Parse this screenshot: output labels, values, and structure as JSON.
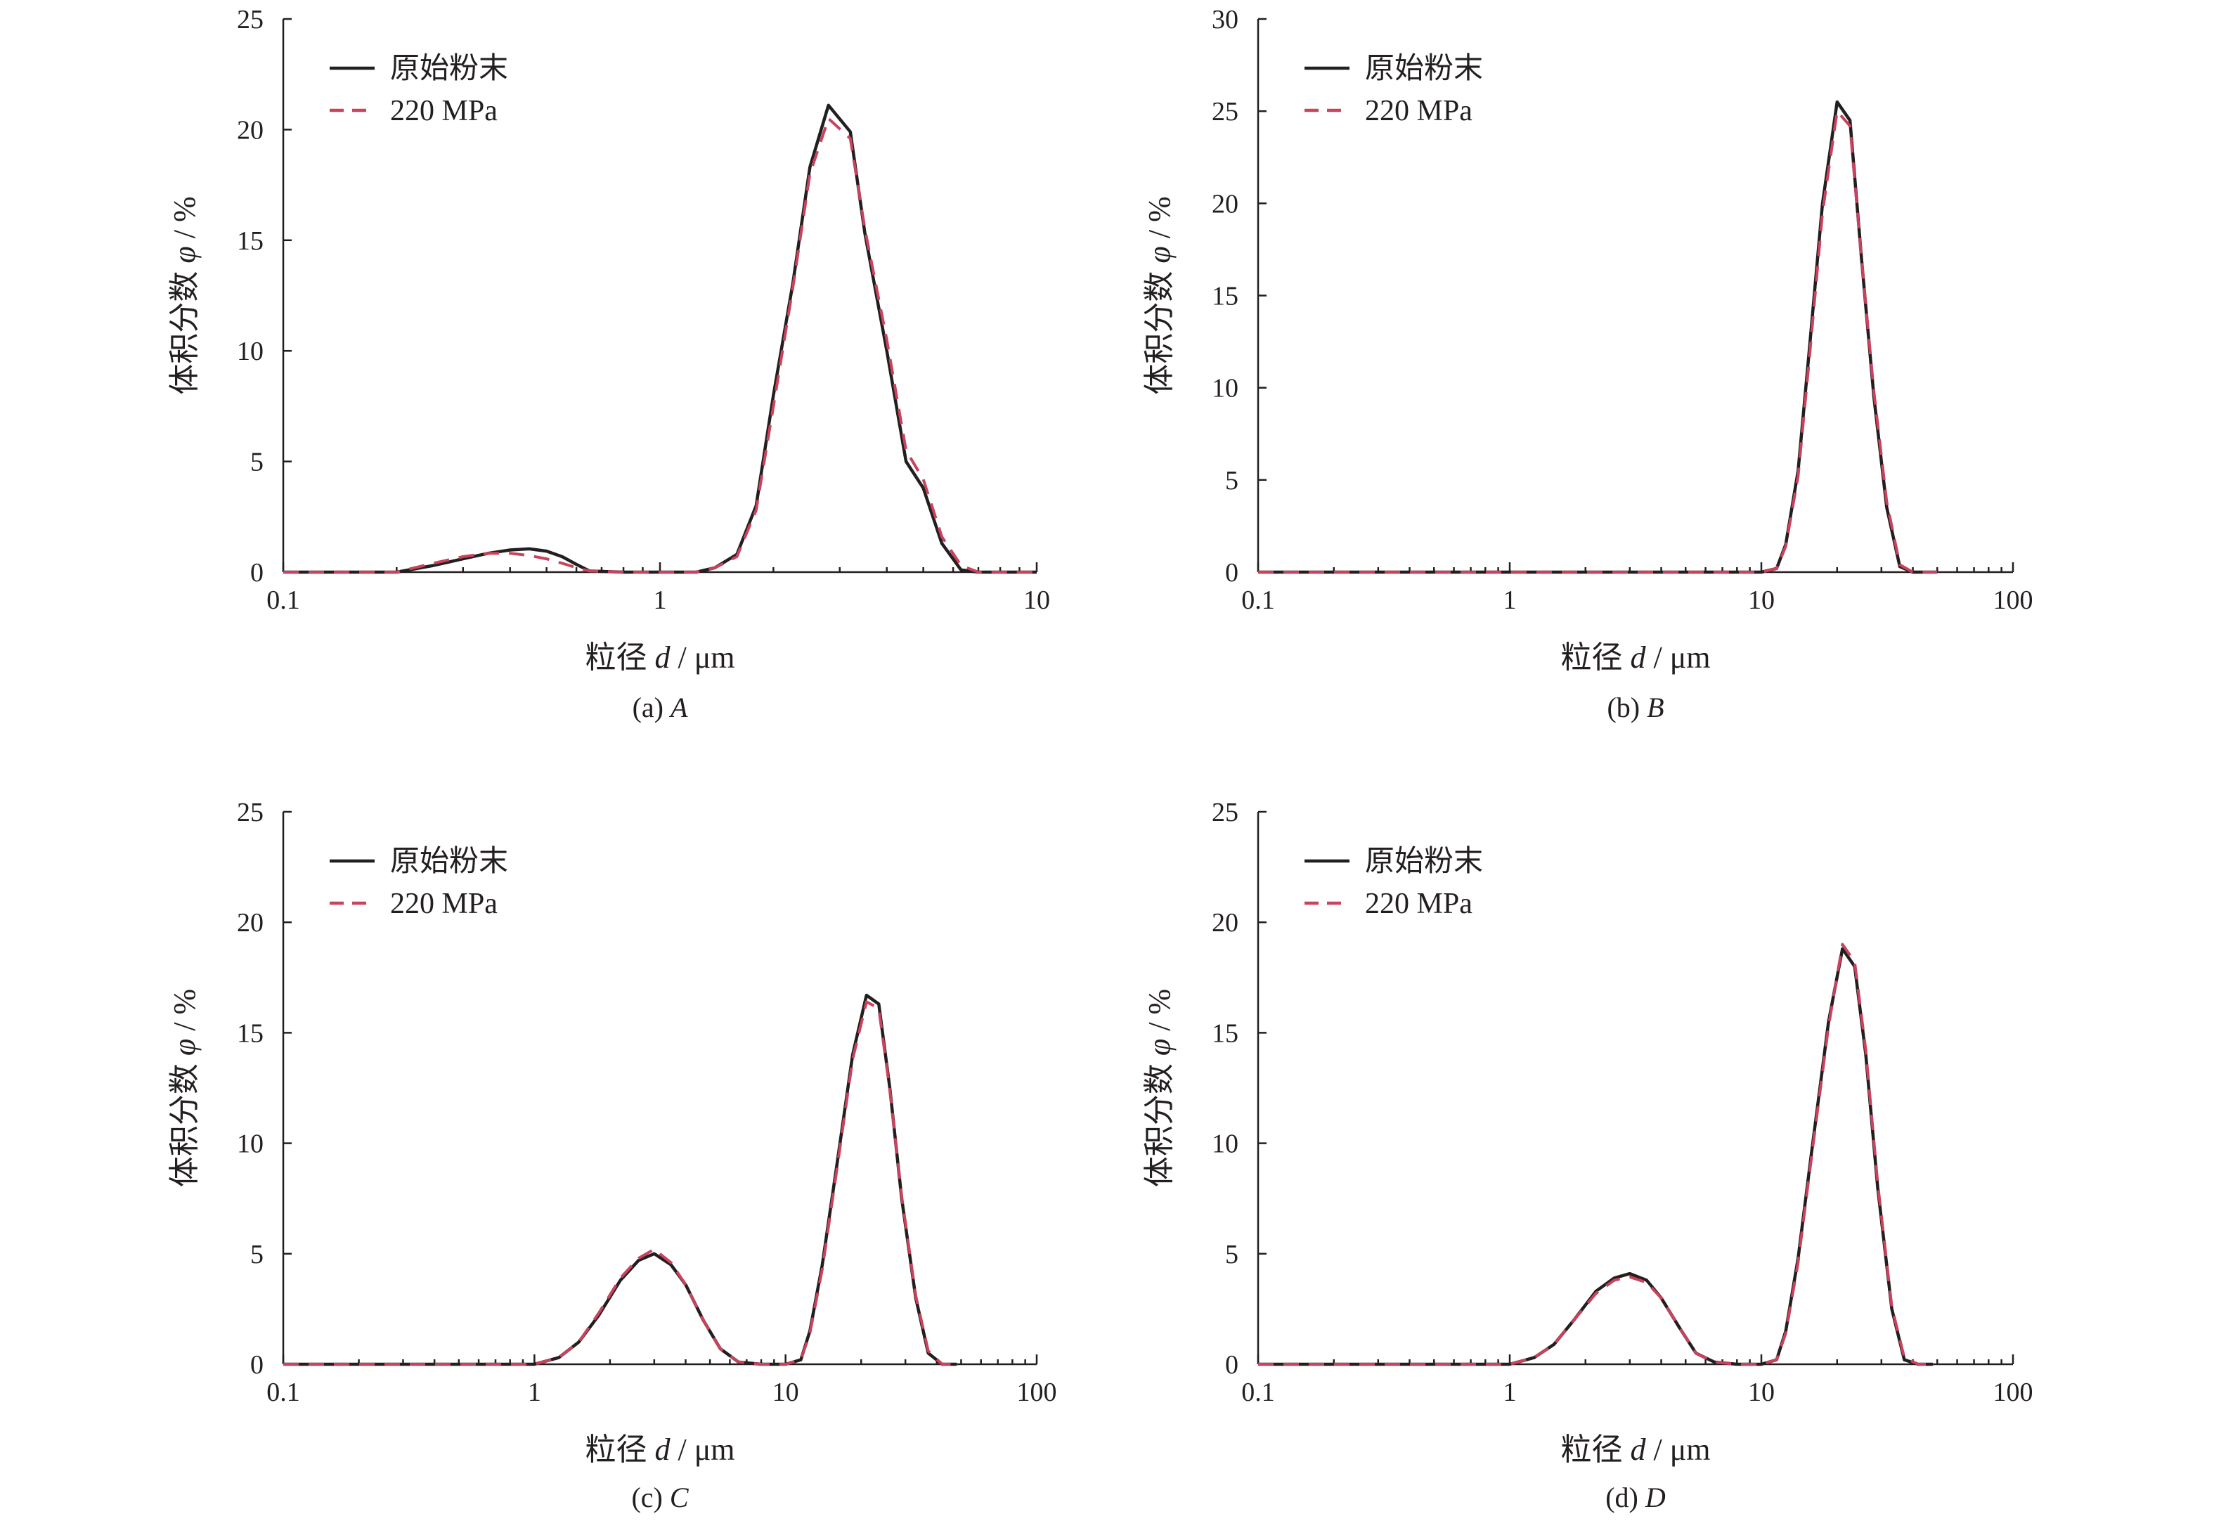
{
  "chart_data": [
    {
      "type": "line",
      "caption_prefix": "(a) ",
      "caption_letter": "A",
      "xlabel_prefix": "粒径 ",
      "xlabel_var": "d",
      "xlabel_unit": " / μm",
      "ylabel_prefix": "体积分数 ",
      "ylabel_var": "φ",
      "ylabel_unit": " / %",
      "xscale": "log",
      "xlim": [
        0.1,
        10
      ],
      "ylim": [
        0,
        25
      ],
      "xticks": [
        {
          "value": 0.1,
          "label": "0.1"
        },
        {
          "value": 1,
          "label": "1"
        },
        {
          "value": 10,
          "label": "10"
        }
      ],
      "yticks": [
        {
          "value": 0,
          "label": "0"
        },
        {
          "value": 5,
          "label": "5"
        },
        {
          "value": 10,
          "label": "10"
        },
        {
          "value": 15,
          "label": "15"
        },
        {
          "value": 20,
          "label": "20"
        },
        {
          "value": 25,
          "label": "25"
        }
      ],
      "legend_position": "top-left",
      "series": [
        {
          "name": "原始粉末",
          "color": "#231f20",
          "dash": "solid",
          "x": [
            0.1,
            0.2,
            0.25,
            0.3,
            0.35,
            0.4,
            0.45,
            0.5,
            0.55,
            0.6,
            0.65,
            0.8,
            1.0,
            1.25,
            1.4,
            1.6,
            1.8,
            2.0,
            2.25,
            2.5,
            2.8,
            3.2,
            3.5,
            4.0,
            4.5,
            5.0,
            5.6,
            6.3,
            7.0,
            8.0,
            10.0
          ],
          "y": [
            0,
            0,
            0.3,
            0.6,
            0.85,
            1.0,
            1.05,
            0.95,
            0.7,
            0.35,
            0.05,
            0,
            0,
            0,
            0.2,
            0.8,
            3.0,
            8.0,
            13.0,
            18.3,
            21.1,
            19.9,
            15.3,
            10.0,
            5.0,
            3.8,
            1.3,
            0.1,
            0,
            0,
            0
          ]
        },
        {
          "name": "220 MPa",
          "color": "#c9425e",
          "dash": "dashed",
          "x": [
            0.1,
            0.2,
            0.25,
            0.3,
            0.35,
            0.4,
            0.45,
            0.5,
            0.55,
            0.6,
            0.65,
            0.8,
            1.0,
            1.25,
            1.4,
            1.6,
            1.8,
            2.0,
            2.25,
            2.5,
            2.8,
            3.2,
            3.5,
            4.0,
            4.5,
            5.0,
            5.6,
            6.3,
            7.0,
            8.0,
            10.0
          ],
          "y": [
            0,
            0,
            0.4,
            0.7,
            0.85,
            0.85,
            0.75,
            0.6,
            0.4,
            0.2,
            0.05,
            0,
            0,
            0,
            0.2,
            0.7,
            2.8,
            7.5,
            12.8,
            18.0,
            20.5,
            19.6,
            15.5,
            10.5,
            5.5,
            4.2,
            1.6,
            0.3,
            0,
            0,
            0
          ]
        }
      ]
    },
    {
      "type": "line",
      "caption_prefix": "(b) ",
      "caption_letter": "B",
      "xlabel_prefix": "粒径 ",
      "xlabel_var": "d",
      "xlabel_unit": " / μm",
      "ylabel_prefix": "体积分数 ",
      "ylabel_var": "φ",
      "ylabel_unit": " / %",
      "xscale": "log",
      "xlim": [
        0.1,
        100
      ],
      "ylim": [
        0,
        30
      ],
      "xticks": [
        {
          "value": 0.1,
          "label": "0.1"
        },
        {
          "value": 1,
          "label": "1"
        },
        {
          "value": 10,
          "label": "10"
        },
        {
          "value": 100,
          "label": "100"
        }
      ],
      "yticks": [
        {
          "value": 0,
          "label": "0"
        },
        {
          "value": 5,
          "label": "5"
        },
        {
          "value": 10,
          "label": "10"
        },
        {
          "value": 15,
          "label": "15"
        },
        {
          "value": 20,
          "label": "20"
        },
        {
          "value": 25,
          "label": "25"
        },
        {
          "value": 30,
          "label": "30"
        }
      ],
      "legend_position": "top-left",
      "series": [
        {
          "name": "原始粉末",
          "color": "#231f20",
          "dash": "solid",
          "x": [
            0.1,
            10,
            11.5,
            12.5,
            14,
            15.5,
            17.5,
            20,
            22.5,
            25,
            28,
            31.5,
            35.5,
            40,
            45,
            50
          ],
          "y": [
            0,
            0,
            0.2,
            1.5,
            5.5,
            12.0,
            20.0,
            25.5,
            24.5,
            17.0,
            9.5,
            3.5,
            0.3,
            0,
            0,
            0
          ]
        },
        {
          "name": "220 MPa",
          "color": "#c9425e",
          "dash": "dashed",
          "x": [
            0.1,
            10,
            11.5,
            12.5,
            14,
            15.5,
            17.5,
            20,
            22.5,
            25,
            28,
            31.5,
            35.5,
            40,
            45,
            50
          ],
          "y": [
            0,
            0,
            0.2,
            1.4,
            5.2,
            11.5,
            19.5,
            25.0,
            24.2,
            17.0,
            9.8,
            3.8,
            0.4,
            0,
            0,
            0
          ]
        }
      ]
    },
    {
      "type": "line",
      "caption_prefix": "(c) ",
      "caption_letter": "C",
      "xlabel_prefix": "粒径 ",
      "xlabel_var": "d",
      "xlabel_unit": " / μm",
      "ylabel_prefix": "体积分数 ",
      "ylabel_var": "φ",
      "ylabel_unit": " / %",
      "xscale": "log",
      "xlim": [
        0.1,
        100
      ],
      "ylim": [
        0,
        25
      ],
      "xticks": [
        {
          "value": 0.1,
          "label": "0.1"
        },
        {
          "value": 1,
          "label": "1"
        },
        {
          "value": 10,
          "label": "10"
        },
        {
          "value": 100,
          "label": "100"
        }
      ],
      "yticks": [
        {
          "value": 0,
          "label": "0"
        },
        {
          "value": 5,
          "label": "5"
        },
        {
          "value": 10,
          "label": "10"
        },
        {
          "value": 15,
          "label": "15"
        },
        {
          "value": 20,
          "label": "20"
        },
        {
          "value": 25,
          "label": "25"
        }
      ],
      "legend_position": "top-left",
      "series": [
        {
          "name": "原始粉末",
          "color": "#231f20",
          "dash": "solid",
          "x": [
            0.1,
            1,
            1.25,
            1.5,
            1.8,
            2.2,
            2.6,
            3.0,
            3.5,
            4.0,
            4.7,
            5.5,
            6.5,
            8,
            10,
            11.5,
            12.5,
            14,
            16,
            18.5,
            21,
            23.5,
            26,
            29,
            33,
            37,
            42,
            48
          ],
          "y": [
            0,
            0,
            0.3,
            1.0,
            2.2,
            3.8,
            4.7,
            5.0,
            4.5,
            3.6,
            2.0,
            0.7,
            0.1,
            0,
            0,
            0.2,
            1.5,
            4.5,
            9.0,
            14.0,
            16.7,
            16.3,
            12.5,
            7.5,
            3.0,
            0.5,
            0,
            0
          ]
        },
        {
          "name": "220 MPa",
          "color": "#c9425e",
          "dash": "dashed",
          "x": [
            0.1,
            1,
            1.25,
            1.5,
            1.8,
            2.2,
            2.6,
            3.0,
            3.5,
            4.0,
            4.7,
            5.5,
            6.5,
            8,
            10,
            11.5,
            12.5,
            14,
            16,
            18.5,
            21,
            23.5,
            26,
            29,
            33,
            37,
            42,
            48
          ],
          "y": [
            0,
            0,
            0.3,
            1.0,
            2.3,
            3.9,
            4.8,
            5.2,
            4.6,
            3.6,
            2.0,
            0.7,
            0.1,
            0,
            0,
            0.2,
            1.4,
            4.3,
            8.8,
            13.8,
            16.4,
            16.1,
            12.4,
            7.6,
            3.1,
            0.6,
            0,
            0
          ]
        }
      ]
    },
    {
      "type": "line",
      "caption_prefix": "(d) ",
      "caption_letter": "D",
      "xlabel_prefix": "粒径 ",
      "xlabel_var": "d",
      "xlabel_unit": " / μm",
      "ylabel_prefix": "体积分数 ",
      "ylabel_var": "φ",
      "ylabel_unit": " / %",
      "xscale": "log",
      "xlim": [
        0.1,
        100
      ],
      "ylim": [
        0,
        25
      ],
      "xticks": [
        {
          "value": 0.1,
          "label": "0.1"
        },
        {
          "value": 1,
          "label": "1"
        },
        {
          "value": 10,
          "label": "10"
        },
        {
          "value": 100,
          "label": "100"
        }
      ],
      "yticks": [
        {
          "value": 0,
          "label": "0"
        },
        {
          "value": 5,
          "label": "5"
        },
        {
          "value": 10,
          "label": "10"
        },
        {
          "value": 15,
          "label": "15"
        },
        {
          "value": 20,
          "label": "20"
        },
        {
          "value": 25,
          "label": "25"
        }
      ],
      "legend_position": "top-left",
      "series": [
        {
          "name": "原始粉末",
          "color": "#231f20",
          "dash": "solid",
          "x": [
            0.1,
            1,
            1.25,
            1.5,
            1.8,
            2.2,
            2.6,
            3.0,
            3.5,
            4.0,
            4.7,
            5.5,
            6.5,
            8,
            10,
            11.5,
            12.5,
            14,
            16,
            18.5,
            21,
            23.5,
            26,
            29,
            33,
            37,
            42,
            48
          ],
          "y": [
            0,
            0,
            0.3,
            0.9,
            2.0,
            3.3,
            3.9,
            4.1,
            3.8,
            3.0,
            1.7,
            0.5,
            0.1,
            0,
            0,
            0.2,
            1.5,
            4.8,
            10.0,
            15.5,
            18.8,
            18.0,
            14.0,
            8.0,
            2.5,
            0.2,
            0,
            0
          ]
        },
        {
          "name": "220 MPa",
          "color": "#c9425e",
          "dash": "dashed",
          "x": [
            0.1,
            1,
            1.25,
            1.5,
            1.8,
            2.2,
            2.6,
            3.0,
            3.5,
            4.0,
            4.7,
            5.5,
            6.5,
            8,
            10,
            11.5,
            12.5,
            14,
            16,
            18.5,
            21,
            23.5,
            26,
            29,
            33,
            37,
            42,
            48
          ],
          "y": [
            0,
            0,
            0.3,
            0.9,
            2.0,
            3.2,
            3.8,
            3.95,
            3.7,
            3.0,
            1.7,
            0.5,
            0.1,
            0,
            0,
            0.2,
            1.4,
            4.6,
            9.8,
            15.3,
            19.0,
            18.2,
            14.2,
            8.2,
            2.6,
            0.3,
            0,
            0
          ]
        }
      ]
    }
  ]
}
